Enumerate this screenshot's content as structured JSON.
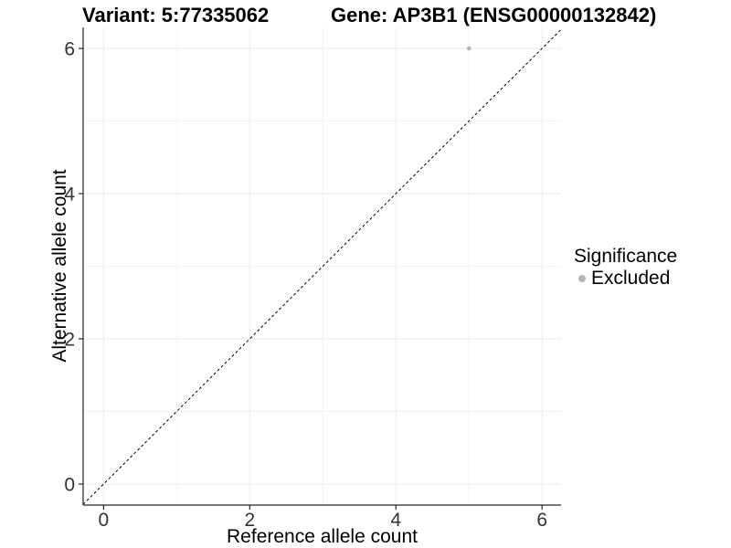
{
  "titles": {
    "variant": "Variant: 5:77335062",
    "gene": "Gene: AP3B1 (ENSG00000132842)"
  },
  "legend": {
    "title": "Significance",
    "items": [
      {
        "label": "Excluded",
        "color": "#b5b5b5"
      }
    ]
  },
  "chart_data": {
    "type": "scatter",
    "title_left": "Variant: 5:77335062",
    "title_right": "Gene: AP3B1 (ENSG00000132842)",
    "xlabel": "Reference allele count",
    "ylabel": "Alternative allele count",
    "xlim": [
      -0.28,
      6.26
    ],
    "ylim": [
      -0.29,
      6.29
    ],
    "x_ticks": [
      0,
      2,
      4,
      6
    ],
    "y_ticks": [
      0,
      2,
      4,
      6
    ],
    "x_minor_ticks": [
      1,
      3,
      5
    ],
    "y_minor_ticks": [
      1,
      3,
      5
    ],
    "grid": "on",
    "legend_position": "right",
    "series": [
      {
        "name": "Excluded",
        "color": "#b5b5b5",
        "points": [
          {
            "x": 5,
            "y": 6
          }
        ]
      }
    ],
    "reference_line": {
      "kind": "identity",
      "slope": 1,
      "intercept": 0,
      "style": "dashed",
      "color": "#000000"
    },
    "style": {
      "grid_major_color": "#e9e9e9",
      "grid_minor_color": "#f2f2f2",
      "axis_line_color": "#262626",
      "tick_label_color": "#333333",
      "point_radius": 2.3,
      "tick_label_size": 21
    }
  }
}
